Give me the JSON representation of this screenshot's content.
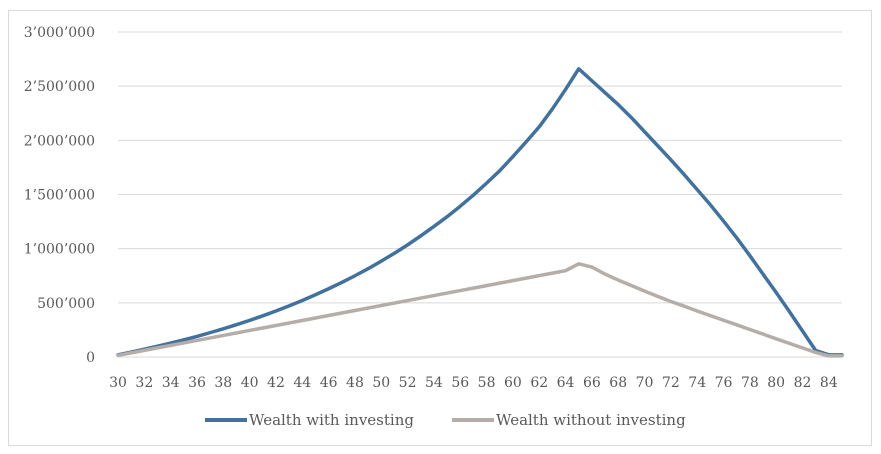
{
  "chart_data": {
    "type": "line",
    "title": "",
    "xlabel": "",
    "ylabel": "",
    "x": [
      30,
      31,
      32,
      33,
      34,
      35,
      36,
      37,
      38,
      39,
      40,
      41,
      42,
      43,
      44,
      45,
      46,
      47,
      48,
      49,
      50,
      51,
      52,
      53,
      54,
      55,
      56,
      57,
      58,
      59,
      60,
      61,
      62,
      63,
      64,
      65,
      66,
      67,
      68,
      69,
      70,
      71,
      72,
      73,
      74,
      75,
      76,
      77,
      78,
      79,
      80,
      81,
      82,
      83,
      84,
      85
    ],
    "x_ticks": [
      30,
      32,
      34,
      36,
      38,
      40,
      42,
      44,
      46,
      48,
      50,
      52,
      54,
      56,
      58,
      60,
      62,
      64,
      66,
      68,
      70,
      72,
      74,
      76,
      78,
      80,
      82,
      84
    ],
    "x_tick_labels": [
      "30",
      "32",
      "34",
      "36",
      "38",
      "40",
      "42",
      "44",
      "46",
      "48",
      "50",
      "52",
      "54",
      "56",
      "58",
      "60",
      "62",
      "64",
      "66",
      "68",
      "70",
      "72",
      "74",
      "76",
      "78",
      "80",
      "82",
      "84"
    ],
    "ylim": [
      0,
      3000000
    ],
    "y_ticks": [
      0,
      500000,
      1000000,
      1500000,
      2000000,
      2500000,
      3000000
    ],
    "y_tick_labels": [
      "0",
      "500’000",
      "1’000’000",
      "1’500’000",
      "2’000’000",
      "2’500’000",
      "3’000’000"
    ],
    "grid": "horizontal",
    "legend": "bottom",
    "series": [
      {
        "name": "Wealth with investing",
        "color": "#41719c",
        "values": [
          20000,
          45000,
          72000,
          100000,
          128000,
          158000,
          190000,
          225000,
          260000,
          298000,
          338000,
          380000,
          425000,
          472000,
          522000,
          575000,
          630000,
          688000,
          750000,
          815000,
          885000,
          958000,
          1035000,
          1118000,
          1205000,
          1295000,
          1392000,
          1495000,
          1605000,
          1720000,
          1850000,
          1985000,
          2125000,
          2290000,
          2470000,
          2660000,
          2550000,
          2440000,
          2330000,
          2210000,
          2080000,
          1950000,
          1820000,
          1685000,
          1545000,
          1405000,
          1255000,
          1100000,
          935000,
          765000,
          595000,
          420000,
          240000,
          60000,
          20000,
          20000
        ]
      },
      {
        "name": "Wealth without investing",
        "color": "#b4ada8",
        "values": [
          15000,
          38000,
          61000,
          84000,
          107000,
          130000,
          153000,
          176000,
          199000,
          222000,
          245000,
          268000,
          291000,
          314000,
          337000,
          360000,
          383000,
          406000,
          429000,
          452000,
          475000,
          498000,
          521000,
          544000,
          567000,
          590000,
          613000,
          636000,
          659000,
          682000,
          705000,
          728000,
          751000,
          774000,
          797000,
          860000,
          830000,
          765000,
          710000,
          660000,
          608000,
          560000,
          512000,
          470000,
          425000,
          382000,
          339000,
          297000,
          254000,
          211000,
          168000,
          126000,
          84000,
          42000,
          10000,
          10000
        ]
      }
    ]
  }
}
